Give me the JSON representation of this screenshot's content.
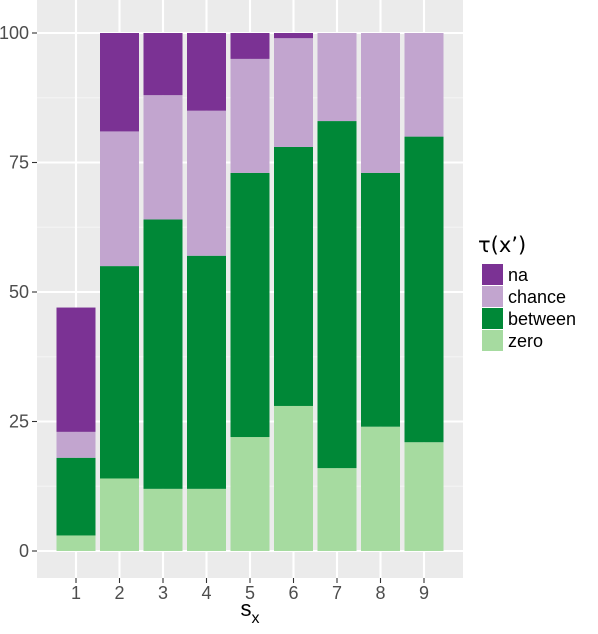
{
  "chart_data": {
    "type": "bar",
    "stacked": true,
    "categories": [
      "1",
      "2",
      "3",
      "4",
      "5",
      "6",
      "7",
      "8",
      "9"
    ],
    "xlabel": "s",
    "xlabel_subscript": "x",
    "ylabel": "",
    "ylim": [
      0,
      100
    ],
    "yticks": [
      0,
      25,
      50,
      75,
      100
    ],
    "grid": true,
    "legend_title": "τ(x’)",
    "legend_position": "right",
    "series": [
      {
        "name": "zero",
        "color": "#a6dba0",
        "values": [
          3,
          14,
          12,
          12,
          22,
          28,
          16,
          24,
          21
        ]
      },
      {
        "name": "between",
        "color": "#008837",
        "values": [
          15,
          41,
          52,
          45,
          51,
          50,
          67,
          49,
          59
        ]
      },
      {
        "name": "chance",
        "color": "#c2a5cf",
        "values": [
          5,
          26,
          24,
          28,
          22,
          21,
          17,
          27,
          20
        ]
      },
      {
        "name": "na",
        "color": "#7b3294",
        "values": [
          24,
          19,
          12,
          15,
          5,
          1,
          0,
          0,
          0
        ]
      }
    ],
    "legend_order": [
      "na",
      "chance",
      "between",
      "zero"
    ]
  }
}
